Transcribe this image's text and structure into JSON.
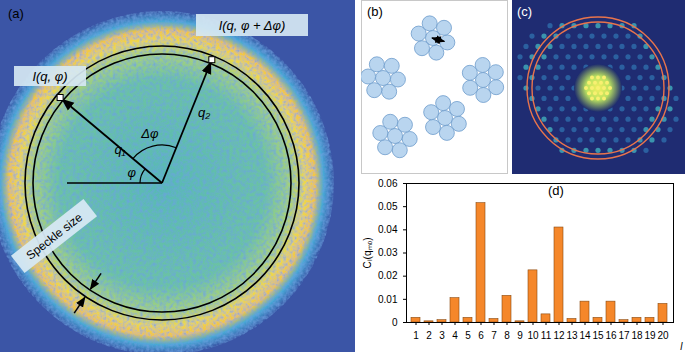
{
  "panels": {
    "a": {
      "label": "(a)",
      "texts": {
        "point1": "I(q, φ)",
        "point2": "I(q, φ + Δφ)",
        "q1": "q₁",
        "q2": "q₂",
        "phi": "φ",
        "dphi": "Δφ",
        "speckle": "Speckle size"
      }
    },
    "b": {
      "label": "(b)"
    },
    "c": {
      "label": "(c)"
    },
    "d": {
      "label": "(d)"
    }
  },
  "chart_data": {
    "type": "bar",
    "categories": [
      1,
      2,
      3,
      4,
      5,
      6,
      7,
      8,
      9,
      10,
      11,
      12,
      13,
      14,
      15,
      16,
      17,
      18,
      19,
      20
    ],
    "values": [
      0.002,
      0.0005,
      0.001,
      0.0105,
      0.002,
      0.0515,
      0.0015,
      0.0115,
      0.0005,
      0.0225,
      0.0035,
      0.041,
      0.0015,
      0.009,
      0.002,
      0.009,
      0.001,
      0.002,
      0.002,
      0.008
    ],
    "color": "#f5872a",
    "x_label": "l",
    "y_label": "Cₗ(qₘₒ)",
    "ylim": [
      0,
      0.06
    ],
    "yticks": [
      0,
      0.01,
      0.02,
      0.03,
      0.04,
      0.05,
      0.06
    ],
    "grid": false
  }
}
